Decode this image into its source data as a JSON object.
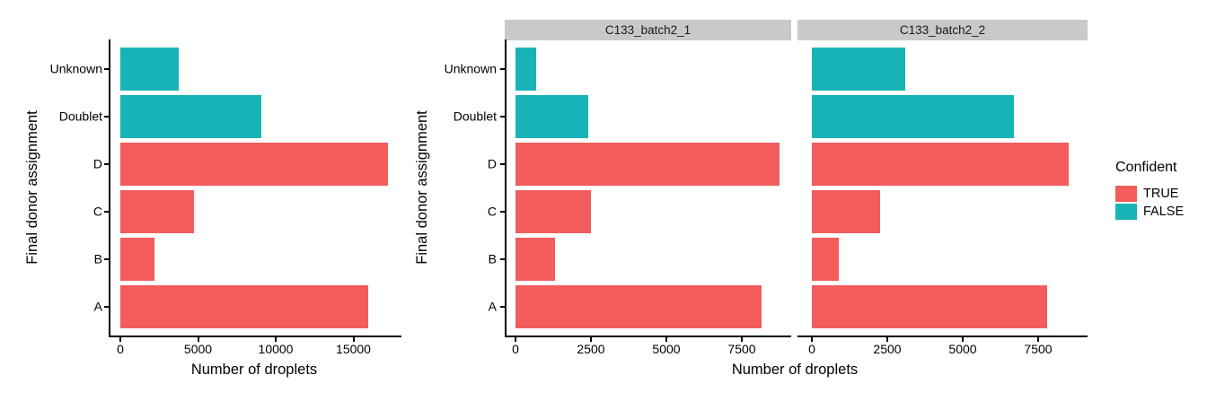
{
  "colors": {
    "confident_true": "#F25C5C",
    "confident_false": "#18B3B6",
    "strip_background": "#C9C9C9",
    "axis": "#000000",
    "text": "#000000",
    "background": "#FFFFFF"
  },
  "legend": {
    "title": "Confident",
    "entries": [
      {
        "label": "TRUE",
        "color_key": "confident_true"
      },
      {
        "label": "FALSE",
        "color_key": "confident_false"
      }
    ]
  },
  "chart_data": [
    {
      "id": "combined",
      "type": "bar",
      "orientation": "horizontal",
      "xlabel": "Number of droplets",
      "ylabel": "Final donor assignment",
      "categories_top_to_bottom": [
        "Unknown",
        "Doublet",
        "D",
        "C",
        "B",
        "A"
      ],
      "confident_by_category": [
        "FALSE",
        "FALSE",
        "TRUE",
        "TRUE",
        "TRUE",
        "TRUE"
      ],
      "x_ticks": [
        0,
        5000,
        10000,
        15000
      ],
      "xlim": [
        0,
        18100
      ],
      "grid": false,
      "legend_position": "none",
      "series": [
        {
          "name": "Number of droplets",
          "values": [
            3780,
            9100,
            17250,
            4750,
            2200,
            15950
          ]
        }
      ]
    },
    {
      "id": "faceted",
      "type": "bar",
      "orientation": "horizontal",
      "xlabel": "Number of droplets",
      "ylabel": "Final donor assignment",
      "categories_top_to_bottom": [
        "Unknown",
        "Doublet",
        "D",
        "C",
        "B",
        "A"
      ],
      "confident_by_category": [
        "FALSE",
        "FALSE",
        "TRUE",
        "TRUE",
        "TRUE",
        "TRUE"
      ],
      "x_ticks": [
        0,
        2500,
        5000,
        7500
      ],
      "xlim": [
        0,
        9150
      ],
      "grid": false,
      "legend_position": "right",
      "facets": [
        {
          "label": "C133_batch2_1",
          "values": [
            680,
            2400,
            8750,
            2500,
            1300,
            8150
          ]
        },
        {
          "label": "C133_batch2_2",
          "values": [
            3100,
            6700,
            8500,
            2250,
            900,
            7800
          ]
        }
      ]
    }
  ]
}
